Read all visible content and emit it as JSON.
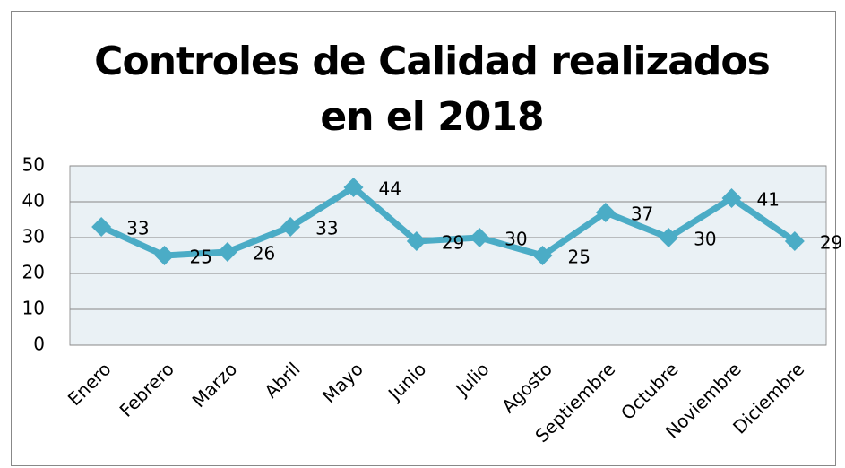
{
  "chart_data": {
    "type": "line",
    "title": "Controles de Calidad realizados en el 2018",
    "categories": [
      "Enero",
      "Febrero",
      "Marzo",
      "Abril",
      "Mayo",
      "Junio",
      "Julio",
      "Agosto",
      "Septiembre",
      "Octubre",
      "Noviembre",
      "Diciembre"
    ],
    "values": [
      33,
      25,
      26,
      33,
      44,
      29,
      30,
      25,
      37,
      30,
      41,
      29
    ],
    "color": "#4bacc6",
    "ylim": [
      0,
      50
    ],
    "yticks": [
      0,
      10,
      20,
      30,
      40,
      50
    ],
    "grid": true
  }
}
